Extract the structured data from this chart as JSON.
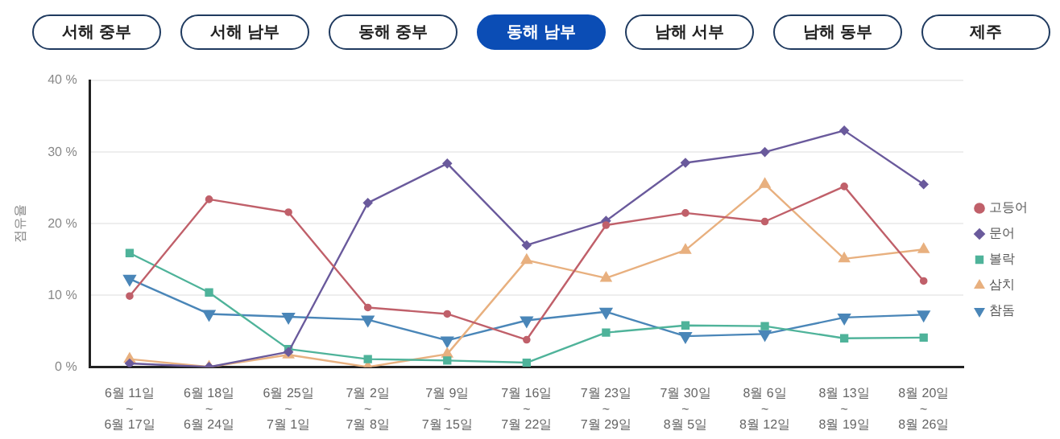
{
  "chart_data": {
    "type": "line",
    "ylabel": "점유율",
    "annotations": [
      "서해 중부",
      "서해 남부",
      "동해 중부",
      "동해 남부",
      "남해 서부",
      "남해 동부",
      "제주"
    ],
    "categories": [
      "6월 11일\n~\n6월 17일",
      "6월 18일\n~\n6월 24일",
      "6월 25일\n~\n7월 1일",
      "7월 2일\n~\n7월 8일",
      "7월 9일\n~\n7월 15일",
      "7월 16일\n~\n7월 22일",
      "7월 23일\n~\n7월 29일",
      "7월 30일\n~\n8월 5일",
      "8월 6일\n~\n8월 12일",
      "8월 13일\n~\n8월 19일",
      "8월 20일\n~\n8월 26일"
    ],
    "series": [
      {
        "name": "고등어",
        "color": "#c0606a",
        "marker": "circle",
        "values": [
          9.9,
          23.4,
          21.6,
          8.3,
          7.4,
          3.8,
          19.8,
          21.5,
          20.3,
          25.2,
          12.0
        ]
      },
      {
        "name": "문어",
        "color": "#6a5a9c",
        "marker": "diamond",
        "values": [
          0.5,
          0,
          2.1,
          22.9,
          28.4,
          17.0,
          20.4,
          28.5,
          30.0,
          33.0,
          25.5
        ]
      },
      {
        "name": "볼락",
        "color": "#4fb39a",
        "marker": "square",
        "values": [
          15.9,
          10.4,
          2.5,
          1.1,
          0.9,
          0.6,
          4.8,
          5.8,
          5.7,
          4.0,
          4.1
        ]
      },
      {
        "name": "삼치",
        "color": "#e8b07f",
        "marker": "triangle",
        "values": [
          1.1,
          0,
          1.7,
          0,
          1.8,
          14.9,
          12.4,
          16.3,
          25.5,
          15.1,
          16.4
        ]
      },
      {
        "name": "참돔",
        "color": "#4a86b8",
        "marker": "triangle",
        "values": [
          12.3,
          7.4,
          7.0,
          6.6,
          3.7,
          6.5,
          7.7,
          4.3,
          4.6,
          6.9,
          7.3
        ]
      }
    ],
    "ylim": [
      0,
      40
    ],
    "yticks": [
      {
        "value": 0,
        "label": "0 %"
      },
      {
        "value": 10,
        "label": "10 %"
      },
      {
        "value": 20,
        "label": "20 %"
      },
      {
        "value": 30,
        "label": "30 %"
      },
      {
        "value": 40,
        "label": "40 %"
      }
    ],
    "grid": "y",
    "legend": "right"
  }
}
